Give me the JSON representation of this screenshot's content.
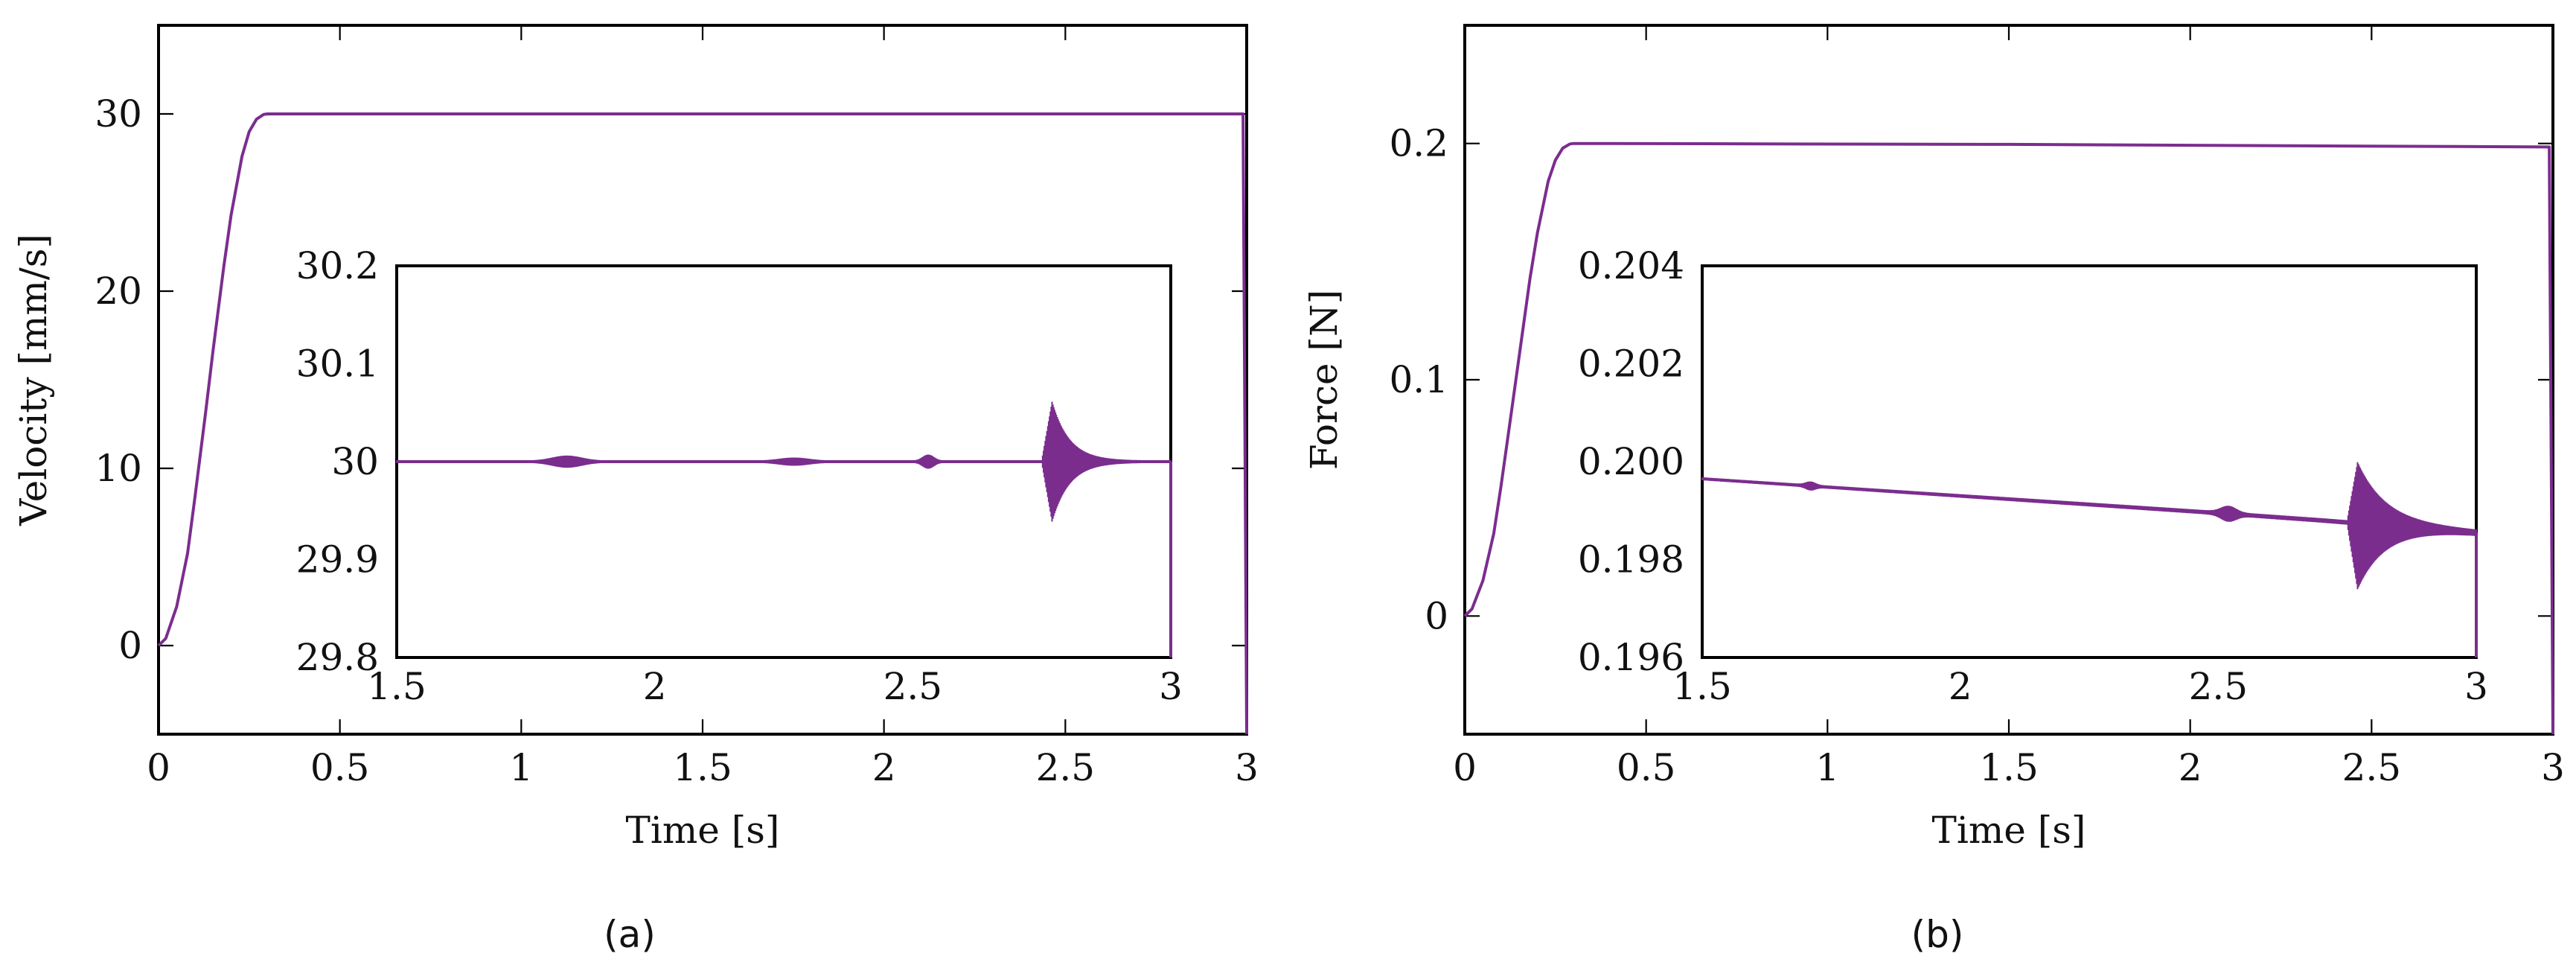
{
  "colors": {
    "series": "#7B2D8E",
    "axis": "#000000"
  },
  "captions": {
    "a": "(a)",
    "b": "(b)"
  },
  "chart_data": [
    {
      "id": "a",
      "type": "line",
      "title": "",
      "xlabel": "Time [s]",
      "ylabel": "Velocity [mm/s]",
      "xlim": [
        0,
        3
      ],
      "ylim": [
        -5,
        35
      ],
      "xticks": [
        {
          "value": 0,
          "label": "0"
        },
        {
          "value": 0.5,
          "label": "0.5"
        },
        {
          "value": 1,
          "label": "1"
        },
        {
          "value": 1.5,
          "label": "1.5"
        },
        {
          "value": 2,
          "label": "2"
        },
        {
          "value": 2.5,
          "label": "2.5"
        },
        {
          "value": 3,
          "label": "3"
        }
      ],
      "yticks": [
        {
          "value": 0,
          "label": "0"
        },
        {
          "value": 10,
          "label": "10"
        },
        {
          "value": 20,
          "label": "20"
        },
        {
          "value": 30,
          "label": "30"
        }
      ],
      "series": [
        {
          "x": [
            0,
            0.02,
            0.05,
            0.08,
            0.1,
            0.13,
            0.15,
            0.18,
            0.2,
            0.23,
            0.25,
            0.27,
            0.29,
            0.3,
            1.0,
            2.0,
            2.99,
            3.0
          ],
          "y": [
            0,
            0.4,
            2.2,
            5.2,
            8.3,
            13.2,
            16.6,
            21.4,
            24.3,
            27.6,
            29.0,
            29.7,
            29.97,
            30,
            30,
            30,
            30,
            -5
          ]
        }
      ],
      "inset": {
        "xlim": [
          1.5,
          3
        ],
        "ylim": [
          29.8,
          30.2
        ],
        "xticks": [
          {
            "value": 1.5,
            "label": "1.5"
          },
          {
            "value": 2,
            "label": "2"
          },
          {
            "value": 2.5,
            "label": "2.5"
          },
          {
            "value": 3,
            "label": "3"
          }
        ],
        "yticks": [
          {
            "value": 29.8,
            "label": "29.8"
          },
          {
            "value": 29.9,
            "label": "29.9"
          },
          {
            "value": 30,
            "label": "30"
          },
          {
            "value": 30.1,
            "label": "30.1"
          },
          {
            "value": 30.2,
            "label": "30.2"
          }
        ],
        "series": [
          {
            "x": [
              1.5,
              3.0
            ],
            "y": [
              30.0,
              30.0
            ],
            "noise": [
              0.0012,
              0.0012
            ],
            "bursts": [
              {
                "t": 1.83,
                "width": 0.08,
                "amp": 0.005
              },
              {
                "t": 2.27,
                "width": 0.08,
                "amp": 0.003
              },
              {
                "t": 2.53,
                "width": 0.03,
                "amp": 0.006
              }
            ],
            "ringdown": {
              "t": 2.77,
              "rise": 0.02,
              "peak": 0.06,
              "trough": -0.06,
              "decay": 0.1
            }
          }
        ]
      }
    },
    {
      "id": "b",
      "type": "line",
      "title": "",
      "xlabel": "Time [s]",
      "ylabel": "Force [N]",
      "xlim": [
        0,
        3
      ],
      "ylim": [
        -0.05,
        0.25
      ],
      "xticks": [
        {
          "value": 0,
          "label": "0"
        },
        {
          "value": 0.5,
          "label": "0.5"
        },
        {
          "value": 1,
          "label": "1"
        },
        {
          "value": 1.5,
          "label": "1.5"
        },
        {
          "value": 2,
          "label": "2"
        },
        {
          "value": 2.5,
          "label": "2.5"
        },
        {
          "value": 3,
          "label": "3"
        }
      ],
      "yticks": [
        {
          "value": 0,
          "label": "0"
        },
        {
          "value": 0.1,
          "label": "0.1"
        },
        {
          "value": 0.2,
          "label": "0.2"
        }
      ],
      "series": [
        {
          "x": [
            0,
            0.02,
            0.05,
            0.08,
            0.1,
            0.13,
            0.15,
            0.18,
            0.2,
            0.23,
            0.25,
            0.27,
            0.29,
            0.3,
            1.5,
            2.99,
            3.0
          ],
          "y": [
            0,
            0.003,
            0.015,
            0.035,
            0.055,
            0.088,
            0.11,
            0.143,
            0.162,
            0.184,
            0.193,
            0.198,
            0.1998,
            0.2,
            0.1996,
            0.1985,
            -0.05
          ]
        }
      ],
      "inset": {
        "xlim": [
          1.5,
          3
        ],
        "ylim": [
          0.196,
          0.204
        ],
        "xticks": [
          {
            "value": 1.5,
            "label": "1.5"
          },
          {
            "value": 2,
            "label": "2"
          },
          {
            "value": 2.5,
            "label": "2.5"
          },
          {
            "value": 3,
            "label": "3"
          }
        ],
        "yticks": [
          {
            "value": 0.196,
            "label": "0.196"
          },
          {
            "value": 0.198,
            "label": "0.198"
          },
          {
            "value": 0.2,
            "label": "0.200"
          },
          {
            "value": 0.202,
            "label": "0.202"
          },
          {
            "value": 0.204,
            "label": "0.204"
          }
        ],
        "series": [
          {
            "x": [
              1.5,
              2.5,
              2.7,
              3.0
            ],
            "y": [
              0.19965,
              0.19895,
              0.1988,
              0.19855
            ],
            "noise": [
              3e-05,
              5e-05
            ],
            "bursts": [
              {
                "t": 1.71,
                "width": 0.025,
                "amp": 6e-05
              },
              {
                "t": 2.52,
                "width": 0.04,
                "amp": 0.00012
              }
            ],
            "ringdown": {
              "t": 2.77,
              "rise": 0.02,
              "peak": 0.0012,
              "trough": -0.0013,
              "decay": 0.16
            }
          }
        ]
      }
    }
  ]
}
